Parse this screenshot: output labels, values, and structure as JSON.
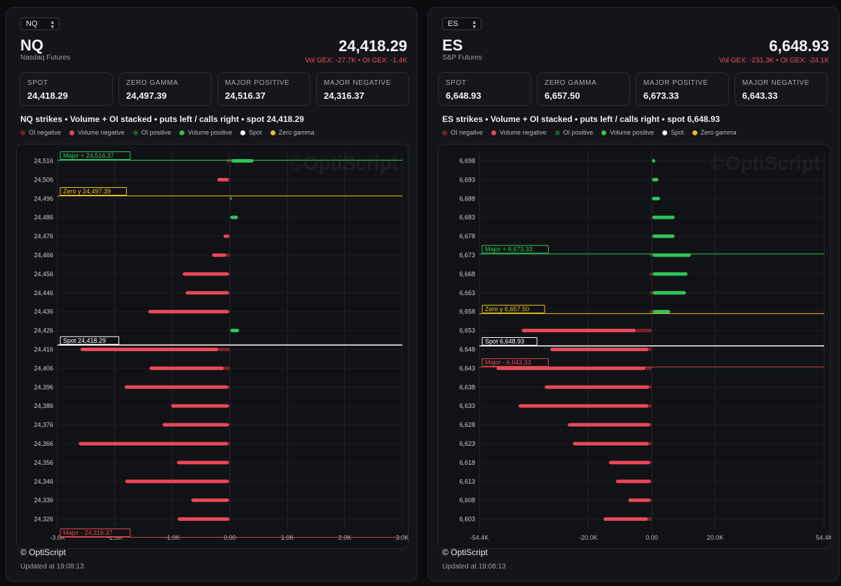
{
  "colors": {
    "oi_negative": "#7a2027",
    "volume_negative": "#e8485a",
    "oi_positive": "#1d5a2c",
    "volume_positive": "#2fc45a",
    "spot": "#ffffff",
    "zero_gamma": "#f0c020",
    "major_positive": "#2fc45a",
    "major_negative": "#e04a50"
  },
  "legend": {
    "oi_negative": "OI negative",
    "volume_negative": "Volume negative",
    "oi_positive": "OI positive",
    "volume_positive": "Volume positive",
    "spot": "Spot",
    "zero_gamma": "Zero gamma"
  },
  "cards_labels": {
    "spot": "SPOT",
    "zero_gamma": "ZERO GAMMA",
    "major_positive": "MAJOR POSITIVE",
    "major_negative": "MAJOR NEGATIVE"
  },
  "watermark": "©OptiScript",
  "copyright": "© OptiScript",
  "panels": {
    "nq": {
      "selector": "NQ",
      "symbol": "NQ",
      "name": "Nasdaq Futures",
      "price": "24,418.29",
      "gex": "Vol GEX: -27.7K • OI GEX: -1.4K",
      "cards": {
        "spot": "24,418.29",
        "zero_gamma": "24,497.39",
        "major_positive": "24,516.37",
        "major_negative": "24,316.37"
      },
      "chart_title": "NQ strikes • Volume + OI stacked • puts left / calls right • spot 24,418.29",
      "updated": "Updated at 19:08:13"
    },
    "es": {
      "selector": "ES",
      "symbol": "ES",
      "name": "S&P Futures",
      "price": "6,648.93",
      "gex": "Vol GEX: -231.3K • OI GEX: -24.1K",
      "cards": {
        "spot": "6,648.93",
        "zero_gamma": "6,657.50",
        "major_positive": "6,673.33",
        "major_negative": "6,643.33"
      },
      "chart_title": "ES strikes • Volume + OI stacked • puts left / calls right • spot 6,648.93",
      "updated": "Updated at 19:08:13"
    }
  },
  "chart_data": [
    {
      "type": "bar",
      "orientation": "horizontal",
      "title": "NQ strikes • Volume + OI stacked • puts left / calls right • spot 24,418.29",
      "xlim": [
        -3000,
        3000
      ],
      "xticks": [
        -3000,
        -2000,
        -1000,
        0,
        1000,
        2000,
        3000
      ],
      "xtick_labels": [
        "-3.0K",
        "-2.0K",
        "-1.0K",
        "0.00",
        "1.0K",
        "2.0K",
        "3.0K"
      ],
      "ylim": [
        24326,
        24516
      ],
      "strike_labels": [
        "24,516",
        "24,506",
        "24,496",
        "24,486",
        "24,476",
        "24,466",
        "24,456",
        "24,446",
        "24,436",
        "24,426",
        "24,416",
        "24,406",
        "24,396",
        "24,386",
        "24,376",
        "24,366",
        "24,356",
        "24,346",
        "24,336",
        "24,326"
      ],
      "strikes": [
        24516,
        24506,
        24496,
        24486,
        24476,
        24466,
        24456,
        24446,
        24436,
        24426,
        24416,
        24406,
        24396,
        24386,
        24376,
        24366,
        24356,
        24346,
        24336,
        24326
      ],
      "series": [
        {
          "name": "Volume negative",
          "values": [
            0,
            -200,
            0,
            0,
            -100,
            -250,
            -800,
            -750,
            -1400,
            0,
            -2400,
            -1300,
            -1800,
            -1000,
            -1150,
            -2600,
            -900,
            -1800,
            -650,
            -900
          ]
        },
        {
          "name": "OI negative",
          "values": [
            -60,
            -20,
            -10,
            0,
            -10,
            -60,
            -20,
            -20,
            -20,
            0,
            -200,
            -100,
            -30,
            -20,
            -20,
            -30,
            -20,
            -20,
            -20,
            -10
          ]
        },
        {
          "name": "Volume positive",
          "values": [
            380,
            0,
            20,
            130,
            0,
            0,
            0,
            0,
            0,
            150,
            0,
            0,
            0,
            0,
            0,
            0,
            0,
            0,
            0,
            0
          ]
        },
        {
          "name": "OI positive",
          "values": [
            30,
            0,
            10,
            10,
            0,
            0,
            0,
            0,
            0,
            10,
            0,
            0,
            0,
            0,
            0,
            0,
            0,
            0,
            0,
            0
          ]
        }
      ],
      "lines": [
        {
          "kind": "major_positive",
          "value": 24516.37,
          "label": "Major + 24,516.37"
        },
        {
          "kind": "zero_gamma",
          "value": 24497.39,
          "label": "Zero γ 24,497.39"
        },
        {
          "kind": "spot",
          "value": 24418.29,
          "label": "Spot 24,418.29"
        },
        {
          "kind": "major_negative",
          "value": 24316.37,
          "label": "Major - 24,316.37"
        }
      ]
    },
    {
      "type": "bar",
      "orientation": "horizontal",
      "title": "ES strikes • Volume + OI stacked • puts left / calls right • spot 6,648.93",
      "xlim": [
        -54400,
        54400
      ],
      "xticks": [
        -54400,
        -20000,
        0,
        20000,
        54400
      ],
      "xtick_labels": [
        "-54.4K",
        "-20.0K",
        "0.00",
        "20.0K",
        "54.4K"
      ],
      "ylim": [
        6603,
        6698
      ],
      "strike_labels": [
        "6,698",
        "6,693",
        "6,688",
        "6,683",
        "6,678",
        "6,673",
        "6,668",
        "6,663",
        "6,658",
        "6,653",
        "6,648",
        "6,643",
        "6,638",
        "6,633",
        "6,628",
        "6,623",
        "6,618",
        "6,613",
        "6,608",
        "6,603"
      ],
      "strikes": [
        6698,
        6693,
        6688,
        6683,
        6678,
        6673,
        6668,
        6663,
        6658,
        6653,
        6648,
        6643,
        6638,
        6633,
        6628,
        6623,
        6618,
        6613,
        6608,
        6603
      ],
      "series": [
        {
          "name": "Volume negative",
          "values": [
            0,
            0,
            0,
            0,
            0,
            0,
            0,
            0,
            0,
            -36000,
            -31000,
            -47000,
            -33000,
            -41000,
            -26000,
            -24000,
            -13000,
            -11000,
            -7000,
            -14000
          ]
        },
        {
          "name": "OI negative",
          "values": [
            0,
            0,
            0,
            -200,
            -100,
            -400,
            -600,
            -600,
            -600,
            -5000,
            -1000,
            -2000,
            -800,
            -1000,
            -500,
            -900,
            -500,
            -300,
            -400,
            -1200
          ]
        },
        {
          "name": "Volume positive",
          "values": [
            1000,
            2000,
            2500,
            7000,
            7000,
            12000,
            11000,
            10500,
            5500,
            0,
            0,
            0,
            0,
            0,
            0,
            0,
            0,
            0,
            0,
            0
          ]
        },
        {
          "name": "OI positive",
          "values": [
            100,
            100,
            100,
            200,
            200,
            300,
            300,
            300,
            300,
            0,
            0,
            0,
            0,
            0,
            0,
            0,
            0,
            0,
            0,
            0
          ]
        }
      ],
      "lines": [
        {
          "kind": "major_positive",
          "value": 6673.33,
          "label": "Major + 6,673.33"
        },
        {
          "kind": "zero_gamma",
          "value": 6657.5,
          "label": "Zero γ 6,657.50"
        },
        {
          "kind": "spot",
          "value": 6648.93,
          "label": "Spot 6,648.93"
        },
        {
          "kind": "major_negative",
          "value": 6643.33,
          "label": "Major - 6,643.33"
        }
      ]
    }
  ]
}
